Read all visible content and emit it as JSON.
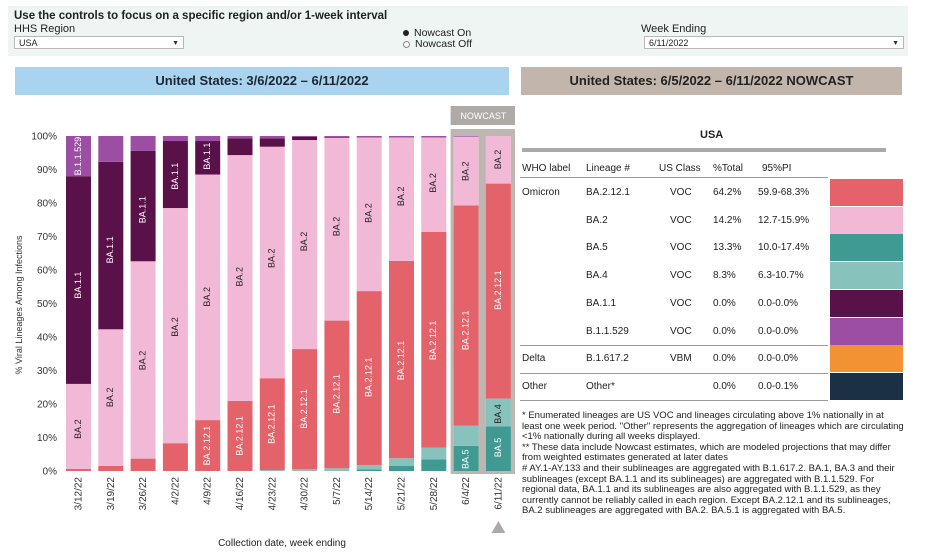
{
  "controls": {
    "title": "Use the controls to focus on a specific region and/or 1-week interval",
    "region_label": "HHS Region",
    "region_value": "USA",
    "nowcast_on": "Nowcast On",
    "nowcast_off": "Nowcast Off",
    "week_label": "Week Ending",
    "week_value": "6/11/2022"
  },
  "banners": {
    "left": "United States: 3/6/2022 – 6/11/2022",
    "right": "United States: 6/5/2022 – 6/11/2022 NOWCAST"
  },
  "colors": {
    "BA.2.12.1": "#e4636a",
    "BA.2": "#f2b9d7",
    "BA.5": "#3e9a93",
    "BA.4": "#88c2bd",
    "BA.1.1": "#5a1049",
    "B.1.1.529": "#9b4ea3",
    "B.1.617.2": "#f29233",
    "Other": "#1b2f45"
  },
  "chart_data": {
    "type": "bar",
    "stacked": true,
    "ylabel": "% Viral Lineages Among Infections",
    "xlabel": "Collection date, week ending",
    "ylim": [
      0,
      100
    ],
    "yticks": [
      "0%",
      "10%",
      "20%",
      "30%",
      "40%",
      "50%",
      "60%",
      "70%",
      "80%",
      "90%",
      "100%"
    ],
    "categories": [
      "3/12/22",
      "3/19/22",
      "3/26/22",
      "4/2/22",
      "4/9/22",
      "4/16/22",
      "4/23/22",
      "4/30/22",
      "5/7/22",
      "5/14/22",
      "5/21/22",
      "5/28/22",
      "6/4/22",
      "6/11/22"
    ],
    "nowcast_label": "NOWCAST",
    "series": [
      {
        "name": "BA.5",
        "values": [
          0,
          0,
          0,
          0,
          0,
          0,
          0,
          0,
          0,
          0.5,
          1.5,
          3.5,
          7.5,
          13.3
        ]
      },
      {
        "name": "BA.4",
        "values": [
          0,
          0,
          0,
          0,
          0,
          0,
          0.3,
          0.5,
          0.8,
          1.3,
          2.3,
          3.5,
          6,
          8.3
        ]
      },
      {
        "name": "BA.2.12.1",
        "values": [
          0.6,
          1.5,
          3.7,
          8.3,
          15.2,
          20.9,
          27.4,
          35.9,
          44.1,
          51.9,
          58.9,
          64.4,
          65.8,
          64.2
        ]
      },
      {
        "name": "BA.2",
        "values": [
          25.4,
          40.8,
          58.9,
          70.2,
          73.3,
          73.4,
          69.1,
          62.4,
          54.6,
          45.9,
          37,
          28.3,
          20.5,
          14.2
        ]
      },
      {
        "name": "BA.1.1",
        "values": [
          62,
          50,
          33,
          20,
          10,
          5,
          2.5,
          1,
          0.3,
          0.2,
          0.1,
          0.1,
          0,
          0
        ]
      },
      {
        "name": "B.1.1.529",
        "values": [
          12,
          7.7,
          4.4,
          1.5,
          1.5,
          0.7,
          0.7,
          0.2,
          0.2,
          0.2,
          0.2,
          0.2,
          0.2,
          0
        ]
      }
    ],
    "bar_labels": [
      [
        [
          "BA.2",
          12.5
        ],
        [
          "BA.1.1",
          55.5
        ],
        [
          "B.1.1.529",
          94
        ]
      ],
      [
        [
          "BA.2",
          22
        ],
        [
          "BA.1.1",
          66
        ]
      ],
      [
        [
          "BA.2",
          33
        ],
        [
          "BA.1.1",
          78
        ]
      ],
      [
        [
          "BA.2",
          43
        ],
        [
          "BA.1.1",
          88
        ]
      ],
      [
        [
          "BA.2.12.1",
          7.6
        ],
        [
          "BA.2",
          52
        ],
        [
          "BA.1.1",
          94
        ]
      ],
      [
        [
          "BA.2.12.1",
          10.5
        ],
        [
          "BA.2",
          58
        ]
      ],
      [
        [
          "BA.2.12.1",
          14
        ],
        [
          "BA.2",
          63.5
        ]
      ],
      [
        [
          "BA.2.12.1",
          18.5
        ],
        [
          "BA.2",
          68.5
        ]
      ],
      [
        [
          "BA.2.12.1",
          23
        ],
        [
          "BA.2",
          73
        ]
      ],
      [
        [
          "BA.2.12.1",
          28
        ],
        [
          "BA.2",
          77
        ]
      ],
      [
        [
          "BA.2.12.1",
          33
        ],
        [
          "BA.2",
          82
        ]
      ],
      [
        [
          "BA.2.12.1",
          39
        ],
        [
          "BA.2",
          86
        ]
      ],
      [
        [
          "BA.5",
          3.5
        ],
        [
          "BA.2.12.1",
          42
        ],
        [
          "BA.2",
          89.5
        ]
      ],
      [
        [
          "BA.5",
          7
        ],
        [
          "BA.4",
          17
        ],
        [
          "BA.2.12.1",
          54
        ],
        [
          "BA.2",
          93
        ]
      ]
    ]
  },
  "table": {
    "title": "USA",
    "headers": {
      "who": "WHO label",
      "lineage": "Lineage #",
      "class": "US Class",
      "total": "%Total",
      "pi": "95%PI"
    },
    "rows": [
      {
        "who": "Omicron",
        "lineage": "BA.2.12.1",
        "class": "VOC",
        "total": "64.2%",
        "pi": "59.9-68.3%",
        "color": "#e4636a"
      },
      {
        "who": "",
        "lineage": "BA.2",
        "class": "VOC",
        "total": "14.2%",
        "pi": "12.7-15.9%",
        "color": "#f2b9d7"
      },
      {
        "who": "",
        "lineage": "BA.5",
        "class": "VOC",
        "total": "13.3%",
        "pi": "10.0-17.4%",
        "color": "#3e9a93"
      },
      {
        "who": "",
        "lineage": "BA.4",
        "class": "VOC",
        "total": "8.3%",
        "pi": "6.3-10.7%",
        "color": "#88c2bd"
      },
      {
        "who": "",
        "lineage": "BA.1.1",
        "class": "VOC",
        "total": "0.0%",
        "pi": "0.0-0.0%",
        "color": "#5a1049"
      },
      {
        "who": "",
        "lineage": "B.1.1.529",
        "class": "VOC",
        "total": "0.0%",
        "pi": "0.0-0.0%",
        "color": "#9b4ea3"
      },
      {
        "who": "Delta",
        "lineage": "B.1.617.2",
        "class": "VBM",
        "total": "0.0%",
        "pi": "0.0-0.0%",
        "color": "#f29233"
      },
      {
        "who": "Other",
        "lineage": "Other*",
        "class": "",
        "total": "0.0%",
        "pi": "0.0-0.1%",
        "color": "#1b2f45"
      }
    ]
  },
  "footnotes": [
    "*     Enumerated lineages are US VOC and lineages circulating above 1% nationally in at least one week period. \"Other\" represents the aggregation of lineages which are circulating <1% nationally during all weeks displayed.",
    "**     These data include Nowcast estimates, which are modeled projections that may differ from weighted estimates generated at later dates",
    "#     AY.1-AY.133 and their sublineages are aggregated with B.1.617.2. BA.1, BA.3 and their sublineages (except BA.1.1 and its sublineages) are aggregated with B.1.1.529. For regional data, BA.1.1 and its sublineages are also aggregated with B.1.1.529, as they currently cannot be reliably called in each region. Except BA.2.12.1 and its sublineages, BA.2 sublineages are aggregated with BA.2. BA.5.1 is aggregated with BA.5."
  ]
}
